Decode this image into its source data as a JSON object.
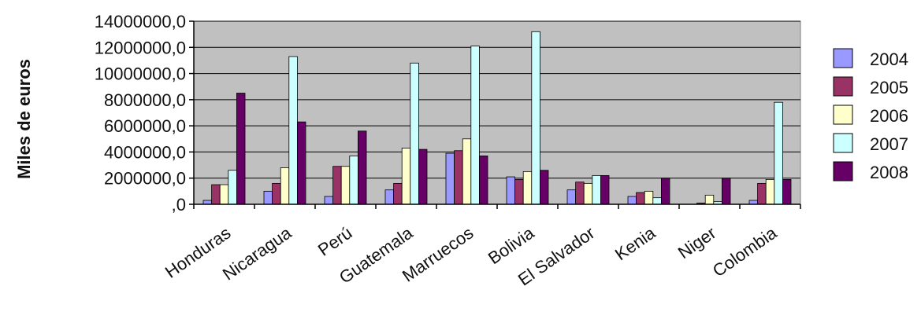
{
  "chart_data": {
    "type": "bar",
    "title": "",
    "xlabel": "",
    "ylabel": "Miles de euros",
    "ylim": [
      0,
      14000000
    ],
    "yticks": [
      0,
      2000000,
      4000000,
      6000000,
      8000000,
      10000000,
      12000000,
      14000000
    ],
    "ytick_labels": [
      ",0",
      "2000000,0",
      "4000000,0",
      "6000000,0",
      "8000000,0",
      "10000000,0",
      "12000000,0",
      "14000000,0"
    ],
    "grid": true,
    "legend_position": "right",
    "categories": [
      "Honduras",
      "Nicaragua",
      "Perú",
      "Guatemala",
      "Marruecos",
      "Bolivia",
      "El Salvador",
      "Kenia",
      "Niger",
      "Colombia"
    ],
    "series": [
      {
        "name": "2004",
        "color": "#9999ff",
        "values": [
          300000,
          1000000,
          600000,
          1100000,
          3900000,
          2100000,
          1100000,
          600000,
          0,
          300000
        ]
      },
      {
        "name": "2005",
        "color": "#993366",
        "values": [
          1500000,
          1600000,
          2900000,
          1600000,
          4100000,
          1900000,
          1700000,
          900000,
          100000,
          1600000
        ]
      },
      {
        "name": "2006",
        "color": "#ffffcc",
        "values": [
          1500000,
          2800000,
          2900000,
          4300000,
          5000000,
          2500000,
          1600000,
          1000000,
          700000,
          1900000
        ]
      },
      {
        "name": "2007",
        "color": "#ccffff",
        "values": [
          2600000,
          11300000,
          3700000,
          10800000,
          12100000,
          13200000,
          2200000,
          500000,
          200000,
          7800000
        ]
      },
      {
        "name": "2008",
        "color": "#660066",
        "values": [
          8500000,
          6300000,
          5600000,
          4200000,
          3700000,
          2600000,
          2200000,
          2000000,
          2000000,
          1900000
        ]
      }
    ]
  }
}
